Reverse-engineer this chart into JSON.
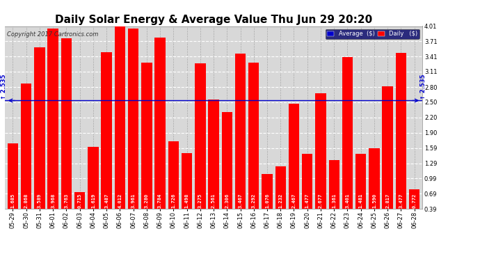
{
  "title": "Daily Solar Energy & Average Value Thu Jun 29 20:20",
  "copyright": "Copyright 2017 Cartronics.com",
  "average_value": 2.535,
  "bar_color": "#ff0000",
  "average_line_color": "#0000cc",
  "background_color": "#ffffff",
  "plot_bg_color": "#d8d8d8",
  "categories": [
    "05-29",
    "05-30",
    "05-31",
    "06-01",
    "06-02",
    "06-03",
    "06-04",
    "06-05",
    "06-06",
    "06-07",
    "06-08",
    "06-09",
    "06-10",
    "06-11",
    "06-12",
    "06-13",
    "06-14",
    "06-15",
    "06-16",
    "06-17",
    "06-18",
    "06-19",
    "06-20",
    "06-21",
    "06-22",
    "06-23",
    "06-24",
    "06-25",
    "06-26",
    "06-27",
    "06-28"
  ],
  "values": [
    1.685,
    2.868,
    3.589,
    3.968,
    3.763,
    0.715,
    1.619,
    3.487,
    4.012,
    3.961,
    3.28,
    3.784,
    1.726,
    1.498,
    3.275,
    2.561,
    2.306,
    3.467,
    3.292,
    1.076,
    1.232,
    2.467,
    1.477,
    2.677,
    1.361,
    3.401,
    1.481,
    1.59,
    2.817,
    3.477,
    0.772
  ],
  "yticks": [
    0.39,
    0.69,
    0.99,
    1.29,
    1.59,
    1.9,
    2.2,
    2.5,
    2.8,
    3.11,
    3.41,
    3.71,
    4.01
  ],
  "ymin": 0.39,
  "ymax": 4.01,
  "title_fontsize": 11,
  "tick_fontsize": 6,
  "bar_text_fontsize": 5
}
